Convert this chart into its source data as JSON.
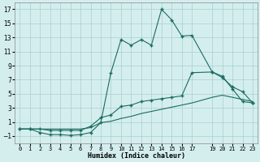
{
  "bg_color": "#d4eeee",
  "grid_color": "#aacece",
  "line_color": "#1a6b60",
  "xlabel": "Humidex (Indice chaleur)",
  "xlim": [
    -0.5,
    23.5
  ],
  "ylim": [
    -2.0,
    18.0
  ],
  "xticks": [
    0,
    1,
    2,
    3,
    4,
    5,
    6,
    7,
    8,
    9,
    10,
    11,
    12,
    13,
    14,
    15,
    16,
    17,
    19,
    20,
    21,
    22,
    23
  ],
  "xtick_labels": [
    "0",
    "1",
    "2",
    "3",
    "4",
    "5",
    "6",
    "7",
    "8",
    "9",
    "10",
    "11",
    "12",
    "13",
    "14",
    "15",
    "16",
    "17",
    "19",
    "20",
    "21",
    "22",
    "23"
  ],
  "yticks": [
    -1,
    1,
    3,
    5,
    7,
    9,
    11,
    13,
    15,
    17
  ],
  "curve_main_x": [
    0,
    1,
    2,
    3,
    4,
    5,
    6,
    7,
    8,
    9,
    10,
    11,
    12,
    13,
    14,
    15,
    16,
    17,
    19,
    20,
    21,
    22,
    23
  ],
  "curve_main_y": [
    0.0,
    0.0,
    -0.5,
    -0.8,
    -0.8,
    -0.9,
    -0.8,
    -0.5,
    0.9,
    8.0,
    12.7,
    11.9,
    12.7,
    11.9,
    17.0,
    15.5,
    13.2,
    13.3,
    8.1,
    7.3,
    6.0,
    5.3,
    3.7
  ],
  "curve_upper_x": [
    0,
    1,
    2,
    3,
    4,
    5,
    6,
    7,
    8,
    9,
    10,
    11,
    12,
    13,
    14,
    15,
    16,
    17,
    19,
    20,
    21,
    22,
    23
  ],
  "curve_upper_y": [
    0.0,
    0.0,
    0.0,
    -0.2,
    -0.2,
    -0.2,
    -0.2,
    0.4,
    1.6,
    2.0,
    3.2,
    3.4,
    3.9,
    4.1,
    4.3,
    4.5,
    4.7,
    8.0,
    8.1,
    7.5,
    5.7,
    3.9,
    3.7
  ],
  "curve_lower_x": [
    0,
    1,
    2,
    3,
    4,
    5,
    6,
    7,
    8,
    9,
    10,
    11,
    12,
    13,
    14,
    15,
    16,
    17,
    19,
    20,
    21,
    22,
    23
  ],
  "curve_lower_y": [
    0.0,
    0.0,
    0.0,
    0.0,
    0.0,
    0.0,
    0.0,
    0.2,
    0.9,
    1.1,
    1.5,
    1.8,
    2.2,
    2.5,
    2.8,
    3.1,
    3.4,
    3.7,
    4.5,
    4.8,
    4.5,
    4.2,
    3.9
  ],
  "lw": 0.8,
  "ms": 2.2
}
